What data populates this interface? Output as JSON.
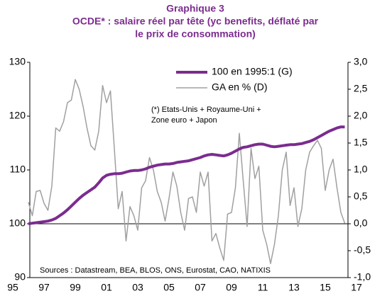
{
  "chart_data": {
    "type": "line",
    "title": [
      "Graphique 3",
      "OCDE* : salaire réel par tête (yc benefits, déflaté par",
      "le prix de consommation)"
    ],
    "annotation": [
      "(*) Etats-Unis + Royaume-Uni +",
      "Zone euro + Japon"
    ],
    "source": "Sources : Datastream, BEA, BLOS, ONS, Eurostat, CAO, NATIXIS",
    "categories": [
      "95",
      null,
      null,
      null,
      null,
      null,
      null,
      null,
      "97",
      null,
      null,
      null,
      null,
      null,
      null,
      null,
      "99",
      null,
      null,
      null,
      null,
      null,
      null,
      null,
      "01",
      null,
      null,
      null,
      null,
      null,
      null,
      null,
      "03",
      null,
      null,
      null,
      null,
      null,
      null,
      null,
      "05",
      null,
      null,
      null,
      null,
      null,
      null,
      null,
      "07",
      null,
      null,
      null,
      null,
      null,
      null,
      null,
      "09",
      null,
      null,
      null,
      null,
      null,
      null,
      null,
      "11",
      null,
      null,
      null,
      null,
      null,
      null,
      null,
      "13",
      null,
      null,
      null,
      null,
      null,
      null,
      null,
      "15",
      null,
      null,
      null,
      null,
      null,
      null,
      null,
      "17"
    ],
    "series": [
      {
        "name": "100 en 1995:1 (G)",
        "color": "#7b2c8f",
        "width": 4,
        "values": [
          null,
          null,
          null,
          null,
          100.0,
          100.1,
          100.2,
          100.3,
          100.4,
          100.5,
          100.7,
          101.0,
          101.5,
          102.0,
          102.6,
          103.3,
          104.0,
          104.7,
          105.3,
          105.8,
          106.3,
          106.8,
          107.6,
          108.5,
          109.0,
          109.2,
          109.3,
          109.3,
          109.4,
          109.6,
          109.8,
          109.9,
          109.9,
          110.0,
          110.2,
          110.5,
          110.7,
          110.9,
          111.0,
          111.1,
          111.1,
          111.2,
          111.4,
          111.5,
          111.6,
          111.7,
          111.9,
          112.1,
          112.3,
          112.6,
          112.8,
          112.9,
          112.8,
          112.7,
          112.6,
          112.8,
          113.1,
          113.5,
          113.9,
          114.2,
          114.3,
          114.5,
          114.7,
          114.8,
          114.8,
          114.6,
          114.4,
          114.3,
          114.4,
          114.5,
          114.6,
          114.7,
          114.7,
          114.8,
          114.9,
          115.1,
          115.3,
          115.6,
          116.0,
          116.4,
          116.8,
          117.2,
          117.5,
          117.8,
          118.0,
          118.0,
          null,
          null,
          null
        ]
      },
      {
        "name": "GA en % (D)",
        "color": "#a0a0a0",
        "width": 1.5,
        "axis": "y2",
        "values": [
          null,
          null,
          null,
          null,
          0.4,
          0.15,
          0.6,
          0.62,
          0.38,
          0.25,
          0.7,
          1.78,
          1.72,
          1.9,
          2.25,
          2.3,
          2.68,
          2.5,
          2.18,
          1.78,
          1.45,
          1.37,
          1.72,
          2.57,
          2.25,
          2.47,
          1.4,
          0.28,
          0.6,
          -0.32,
          0.32,
          0.15,
          -0.12,
          0.67,
          0.8,
          1.23,
          1.0,
          0.6,
          0.4,
          0.05,
          0.47,
          0.96,
          0.7,
          0.21,
          -0.12,
          0.47,
          0.5,
          0.21,
          0.96,
          0.7,
          0.96,
          -0.32,
          -0.18,
          -0.45,
          -0.68,
          0.18,
          0.21,
          0.67,
          1.68,
          0.8,
          -0.05,
          1.4,
          0.84,
          1.07,
          -0.12,
          -0.38,
          -0.74,
          -0.38,
          0.15,
          1.0,
          1.33,
          0.34,
          0.67,
          -0.05,
          0.28,
          1.0,
          1.33,
          1.45,
          1.55,
          1.4,
          0.62,
          1.0,
          1.2,
          0.67,
          0.21,
          0.01,
          null,
          null,
          null
        ]
      }
    ],
    "ylim": [
      90,
      130
    ],
    "yticks": [
      90,
      100,
      110,
      120,
      130
    ],
    "y2lim": [
      -1,
      3
    ],
    "y2ticks": [
      {
        "value": -1,
        "label": "-1,0"
      },
      {
        "value": -0.5,
        "label": "-0,5"
      },
      {
        "value": 0,
        "label": "0,0"
      },
      {
        "value": 0.5,
        "label": "0,5"
      },
      {
        "value": 1,
        "label": "1,0"
      },
      {
        "value": 1.5,
        "label": "1,5"
      },
      {
        "value": 2,
        "label": "2,0"
      },
      {
        "value": 2.5,
        "label": "2,5"
      },
      {
        "value": 3,
        "label": "3,0"
      }
    ],
    "baseline_y2": 0
  }
}
